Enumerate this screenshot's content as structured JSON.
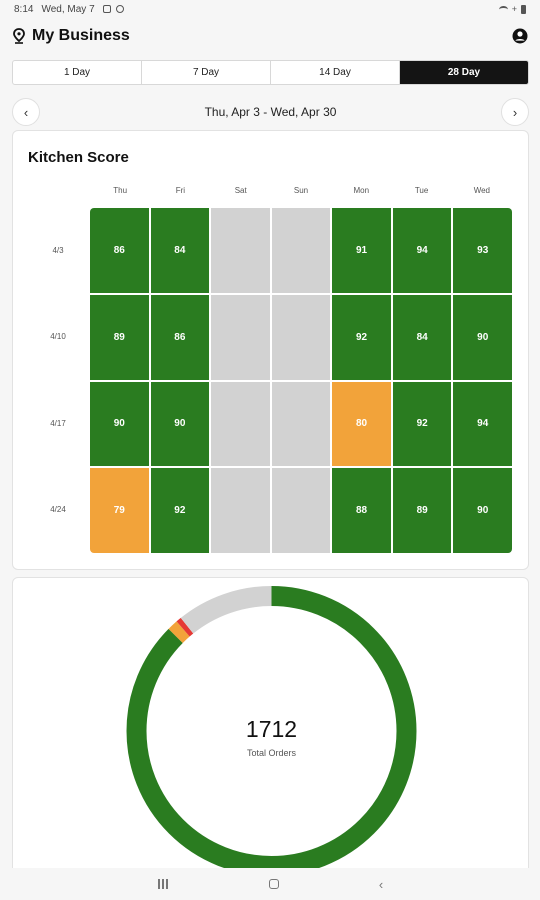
{
  "status_bar": {
    "time": "8:14",
    "date": "Wed, May 7"
  },
  "header": {
    "title": "My Business",
    "location_icon": "pin-icon",
    "account_icon": "account-icon"
  },
  "range_tabs": [
    {
      "label": "1 Day",
      "active": false
    },
    {
      "label": "7 Day",
      "active": false
    },
    {
      "label": "14 Day",
      "active": false
    },
    {
      "label": "28 Day",
      "active": true
    }
  ],
  "date_nav": {
    "prev": "‹",
    "range": "Thu, Apr 3 - Wed, Apr 30",
    "next": "›"
  },
  "kitchen_score": {
    "title": "Kitchen Score",
    "days": [
      "Thu",
      "Fri",
      "Sat",
      "Sun",
      "Mon",
      "Tue",
      "Wed"
    ],
    "weeks": [
      "4/3",
      "4/10",
      "4/17",
      "4/24"
    ],
    "rows": [
      [
        "86",
        "84",
        "",
        "",
        "91",
        "94",
        "93"
      ],
      [
        "89",
        "86",
        "",
        "",
        "92",
        "84",
        "90"
      ],
      [
        "90",
        "90",
        "",
        "",
        "80",
        "92",
        "94"
      ],
      [
        "79",
        "92",
        "",
        "",
        "88",
        "89",
        "90"
      ]
    ],
    "colors": {
      "good": "#2a7c20",
      "warn": "#f2a33a",
      "empty": "#d2d2d2"
    }
  },
  "orders": {
    "count": "1712",
    "label": "Total Orders",
    "segments": [
      {
        "color": "#2a7c20",
        "fraction": 0.874
      },
      {
        "color": "#f2a33a",
        "fraction": 0.012
      },
      {
        "color": "#e53935",
        "fraction": 0.006
      },
      {
        "color": "#d2d2d2",
        "fraction": 0.108
      }
    ]
  },
  "system_nav": {
    "back": "‹"
  }
}
